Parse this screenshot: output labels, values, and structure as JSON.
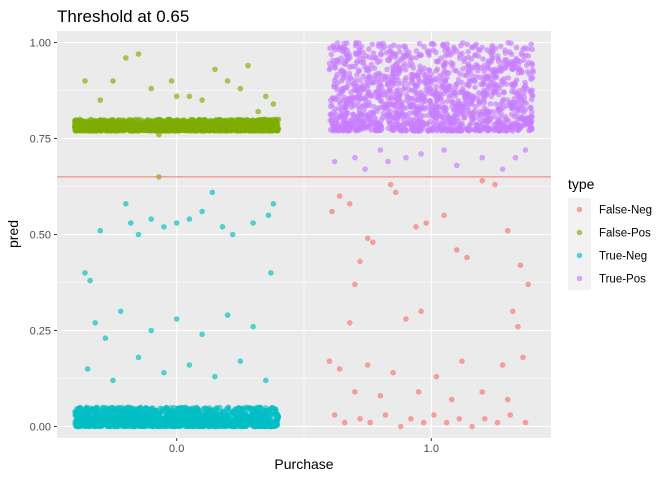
{
  "chart_data": {
    "type": "scatter",
    "title": "Threshold at 0.65",
    "xlabel": "Purchase",
    "ylabel": "pred",
    "xlim": [
      -0.47,
      1.47
    ],
    "ylim": [
      -0.03,
      1.03
    ],
    "x_ticks": [
      {
        "value": 0,
        "label": "0.0"
      },
      {
        "value": 1,
        "label": "1.0"
      }
    ],
    "y_ticks": [
      {
        "value": 0,
        "label": "0.00"
      },
      {
        "value": 0.25,
        "label": "0.25"
      },
      {
        "value": 0.5,
        "label": "0.50"
      },
      {
        "value": 0.75,
        "label": "0.75"
      },
      {
        "value": 1,
        "label": "1.00"
      }
    ],
    "grid": true,
    "threshold": 0.65,
    "threshold_color": "#F8766D",
    "legend_title": "type",
    "legend_position": "right",
    "series": [
      {
        "name": "False-Neg",
        "color": "#F8766D",
        "x_center": 1,
        "x_spread": 0.4,
        "representative_points": [
          [
            0.61,
            0.56
          ],
          [
            0.64,
            0.6
          ],
          [
            0.68,
            0.58
          ],
          [
            0.75,
            0.49
          ],
          [
            0.77,
            0.48
          ],
          [
            0.72,
            0.43
          ],
          [
            0.7,
            0.37
          ],
          [
            0.84,
            0.63
          ],
          [
            0.86,
            0.61
          ],
          [
            0.94,
            0.52
          ],
          [
            0.98,
            0.53
          ],
          [
            1.05,
            0.55
          ],
          [
            1.1,
            0.46
          ],
          [
            1.14,
            0.44
          ],
          [
            1.2,
            0.64
          ],
          [
            1.25,
            0.63
          ],
          [
            1.3,
            0.51
          ],
          [
            1.35,
            0.42
          ],
          [
            1.38,
            0.37
          ],
          [
            0.9,
            0.28
          ],
          [
            0.96,
            0.3
          ],
          [
            0.68,
            0.27
          ],
          [
            1.32,
            0.3
          ],
          [
            1.34,
            0.26
          ],
          [
            0.6,
            0.17
          ],
          [
            0.64,
            0.15
          ],
          [
            0.75,
            0.16
          ],
          [
            0.85,
            0.14
          ],
          [
            1.02,
            0.13
          ],
          [
            1.12,
            0.17
          ],
          [
            1.28,
            0.16
          ],
          [
            1.36,
            0.18
          ],
          [
            0.7,
            0.09
          ],
          [
            0.8,
            0.08
          ],
          [
            0.95,
            0.09
          ],
          [
            1.08,
            0.07
          ],
          [
            1.2,
            0.09
          ],
          [
            1.3,
            0.07
          ],
          [
            0.62,
            0.03
          ],
          [
            0.66,
            0.01
          ],
          [
            0.72,
            0.02
          ],
          [
            0.76,
            0.01
          ],
          [
            0.82,
            0.03
          ],
          [
            0.88,
            0.0
          ],
          [
            0.92,
            0.02
          ],
          [
            0.97,
            0.01
          ],
          [
            1.01,
            0.03
          ],
          [
            1.06,
            0.01
          ],
          [
            1.11,
            0.02
          ],
          [
            1.16,
            0.0
          ],
          [
            1.21,
            0.02
          ],
          [
            1.26,
            0.01
          ],
          [
            1.31,
            0.03
          ],
          [
            1.37,
            0.01
          ]
        ]
      },
      {
        "name": "False-Pos",
        "color": "#7CAE00",
        "x_center": 0,
        "x_spread": 0.4,
        "representative_points": [
          [
            -0.38,
            0.8
          ],
          [
            -0.3,
            0.85
          ],
          [
            -0.2,
            0.96
          ],
          [
            -0.15,
            0.97
          ],
          [
            -0.1,
            0.88
          ],
          [
            -0.02,
            0.9
          ],
          [
            0.05,
            0.86
          ],
          [
            0.1,
            0.85
          ],
          [
            0.15,
            0.93
          ],
          [
            0.2,
            0.9
          ],
          [
            0.28,
            0.94
          ],
          [
            0.35,
            0.86
          ],
          [
            0.38,
            0.84
          ],
          [
            -0.36,
            0.9
          ],
          [
            -0.25,
            0.9
          ],
          [
            0.0,
            0.86
          ],
          [
            0.25,
            0.88
          ],
          [
            0.32,
            0.82
          ],
          [
            -0.07,
            0.76
          ],
          [
            -0.07,
            0.65
          ]
        ],
        "dense_band": [
          0.77,
          0.8
        ]
      },
      {
        "name": "True-Neg",
        "color": "#00BFC4",
        "x_center": 0,
        "x_spread": 0.4,
        "representative_points": [
          [
            -0.36,
            0.4
          ],
          [
            -0.34,
            0.38
          ],
          [
            -0.3,
            0.51
          ],
          [
            -0.2,
            0.58
          ],
          [
            -0.18,
            0.53
          ],
          [
            -0.15,
            0.5
          ],
          [
            -0.1,
            0.54
          ],
          [
            -0.05,
            0.52
          ],
          [
            0.0,
            0.53
          ],
          [
            0.05,
            0.54
          ],
          [
            0.1,
            0.56
          ],
          [
            0.14,
            0.61
          ],
          [
            0.18,
            0.52
          ],
          [
            0.22,
            0.5
          ],
          [
            0.3,
            0.53
          ],
          [
            0.36,
            0.55
          ],
          [
            0.38,
            0.58
          ],
          [
            0.37,
            0.4
          ],
          [
            -0.32,
            0.27
          ],
          [
            -0.28,
            0.23
          ],
          [
            -0.22,
            0.3
          ],
          [
            -0.1,
            0.25
          ],
          [
            0.0,
            0.28
          ],
          [
            0.1,
            0.24
          ],
          [
            0.2,
            0.29
          ],
          [
            0.3,
            0.26
          ],
          [
            -0.35,
            0.15
          ],
          [
            -0.25,
            0.12
          ],
          [
            -0.15,
            0.18
          ],
          [
            -0.05,
            0.14
          ],
          [
            0.05,
            0.16
          ],
          [
            0.15,
            0.13
          ],
          [
            0.25,
            0.17
          ],
          [
            0.35,
            0.12
          ]
        ],
        "dense_band": [
          0.0,
          0.05
        ]
      },
      {
        "name": "True-Pos",
        "color": "#C77CFF",
        "x_center": 1,
        "x_spread": 0.4,
        "representative_points": [
          [
            0.62,
            0.69
          ],
          [
            0.7,
            0.7
          ],
          [
            0.74,
            0.67
          ],
          [
            0.8,
            0.72
          ],
          [
            0.83,
            0.69
          ],
          [
            0.9,
            0.7
          ],
          [
            0.96,
            0.71
          ],
          [
            1.05,
            0.72
          ],
          [
            1.1,
            0.68
          ],
          [
            1.2,
            0.7
          ],
          [
            1.28,
            0.67
          ],
          [
            1.33,
            0.7
          ],
          [
            1.37,
            0.72
          ]
        ],
        "dense_band": [
          0.77,
          1.0
        ]
      }
    ]
  }
}
